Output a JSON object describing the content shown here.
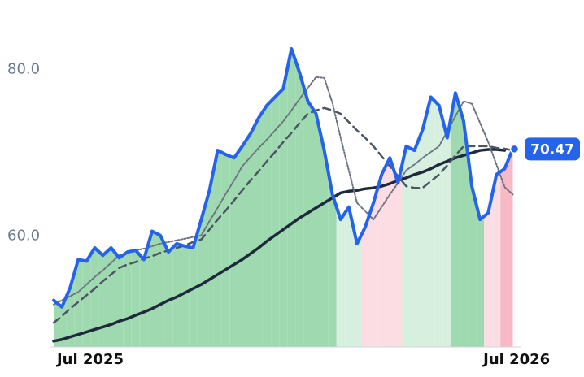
{
  "chart_data": {
    "type": "line",
    "categories": [
      "Jul 2025",
      null,
      null,
      null,
      null,
      null,
      null,
      null,
      null,
      null,
      null,
      null,
      null,
      null,
      null,
      null,
      null,
      null,
      null,
      null,
      null,
      null,
      null,
      null,
      null,
      null,
      null,
      null,
      null,
      null,
      null,
      null,
      null,
      null,
      null,
      null,
      null,
      null,
      null,
      null,
      null,
      null,
      null,
      null,
      null,
      null,
      null,
      null,
      null,
      null,
      null,
      null,
      "Jul 2026",
      null,
      null,
      null,
      null
    ],
    "ylim": [
      46.7,
      86.4
    ],
    "yticks": [
      {
        "value": 60,
        "label": "60.0"
      },
      {
        "value": 80,
        "label": "80.0"
      }
    ],
    "area_colors": [
      "#9fd9b0",
      "#9fd9b0",
      "#9fd9b0",
      "#9fd9b0",
      "#9fd9b0",
      "#9fd9b0",
      "#9fd9b0",
      "#9fd9b0",
      "#9fd9b0",
      "#9fd9b0",
      "#9fd9b0",
      "#9fd9b0",
      "#9fd9b0",
      "#9fd9b0",
      "#9fd9b0",
      "#9fd9b0",
      "#9fd9b0",
      "#9fd9b0",
      "#9fd9b0",
      "#9fd9b0",
      "#9fd9b0",
      "#9fd9b0",
      "#9fd9b0",
      "#9fd9b0",
      "#9fd9b0",
      "#9fd9b0",
      "#9fd9b0",
      "#9fd9b0",
      "#9fd9b0",
      "#9fd9b0",
      "#9fd9b0",
      "#9fd9b0",
      "#9fd9b0",
      "#9fd9b0",
      "#9fd9b0",
      "#d6efdf",
      "#d6efdf",
      "#d6efdf",
      "#fddde4",
      "#fddde4",
      "#fddde4",
      "#fddde4",
      "#fddde4",
      "#d6efdf",
      "#d6efdf",
      "#d6efdf",
      "#d6efdf",
      "#d6efdf",
      "#d6efdf",
      "#9fd9b0",
      "#9fd9b0",
      "#9fd9b0",
      "#9fd9b0",
      "#fddde4",
      "#fddde4",
      "#f8b8c5",
      "#f8b8c5"
    ],
    "series": [
      {
        "color": "#2563eb",
        "width": 4,
        "values": [
          52.3,
          51.5,
          53.8,
          57.2,
          57.0,
          58.6,
          57.7,
          58.6,
          57.4,
          58.1,
          58.3,
          57.2,
          60.6,
          60.1,
          58.1,
          59.1,
          58.8,
          58.6,
          62.0,
          65.5,
          70.3,
          69.8,
          69.4,
          70.8,
          72.3,
          74.2,
          75.7,
          76.7,
          77.7,
          82.5,
          79.6,
          76.2,
          74.7,
          70.3,
          65.0,
          62.0,
          63.5,
          59.1,
          61.1,
          64.0,
          67.4,
          69.4,
          66.4,
          70.8,
          70.3,
          72.8,
          76.7,
          75.7,
          71.8,
          77.2,
          73.8,
          66.0,
          62.0,
          62.8,
          67.4,
          68.1,
          70.47
        ]
      },
      {
        "color": "#6b7280",
        "width": 2,
        "dash": "2,2",
        "values": [
          51.8,
          52.3,
          52.8,
          53.3,
          54.2,
          55.1,
          55.9,
          56.8,
          57.7,
          58.0,
          58.3,
          58.5,
          58.8,
          59.1,
          59.3,
          59.5,
          59.7,
          59.9,
          60.1,
          61.8,
          63.4,
          65.1,
          66.7,
          68.4,
          69.5,
          70.6,
          71.6,
          72.7,
          73.8,
          75.1,
          76.5,
          77.8,
          79.1,
          79.0,
          76.0,
          71.8,
          67.9,
          64.0,
          63.0,
          62.0,
          63.5,
          65.0,
          66.4,
          67.9,
          68.6,
          69.4,
          70.1,
          70.8,
          72.6,
          74.4,
          76.2,
          75.9,
          73.6,
          71.3,
          68.6,
          65.9,
          65.0
        ]
      },
      {
        "color": "#4b5563",
        "width": 2.5,
        "dash": "9,6",
        "values": [
          49.6,
          50.4,
          51.3,
          52.1,
          52.9,
          53.7,
          54.6,
          55.4,
          56.2,
          56.6,
          56.9,
          57.3,
          57.6,
          58.0,
          58.3,
          58.6,
          58.9,
          59.3,
          59.6,
          60.8,
          62.0,
          63.1,
          64.3,
          65.5,
          66.7,
          67.8,
          69.0,
          70.1,
          71.3,
          72.4,
          73.6,
          74.7,
          75.1,
          75.4,
          75.1,
          74.7,
          73.7,
          72.7,
          71.8,
          70.8,
          69.6,
          68.4,
          67.2,
          66.0,
          65.8,
          65.8,
          66.6,
          67.4,
          68.5,
          69.7,
          70.8,
          70.8,
          70.8,
          70.8,
          70.6,
          70.5,
          70.3
        ]
      },
      {
        "color": "#1e293b",
        "width": 3.5,
        "values": [
          47.4,
          47.6,
          47.9,
          48.2,
          48.5,
          48.8,
          49.1,
          49.4,
          49.8,
          50.1,
          50.5,
          50.9,
          51.3,
          51.8,
          52.3,
          52.7,
          53.2,
          53.7,
          54.2,
          54.8,
          55.4,
          56.0,
          56.6,
          57.2,
          57.9,
          58.6,
          59.4,
          60.1,
          60.8,
          61.5,
          62.2,
          62.8,
          63.4,
          64.0,
          64.6,
          65.2,
          65.4,
          65.5,
          65.7,
          65.8,
          66.0,
          66.3,
          66.7,
          67.0,
          67.4,
          67.7,
          68.1,
          68.6,
          69.0,
          69.4,
          69.7,
          70.0,
          70.3,
          70.4,
          70.4,
          70.3,
          null
        ]
      }
    ]
  }
}
